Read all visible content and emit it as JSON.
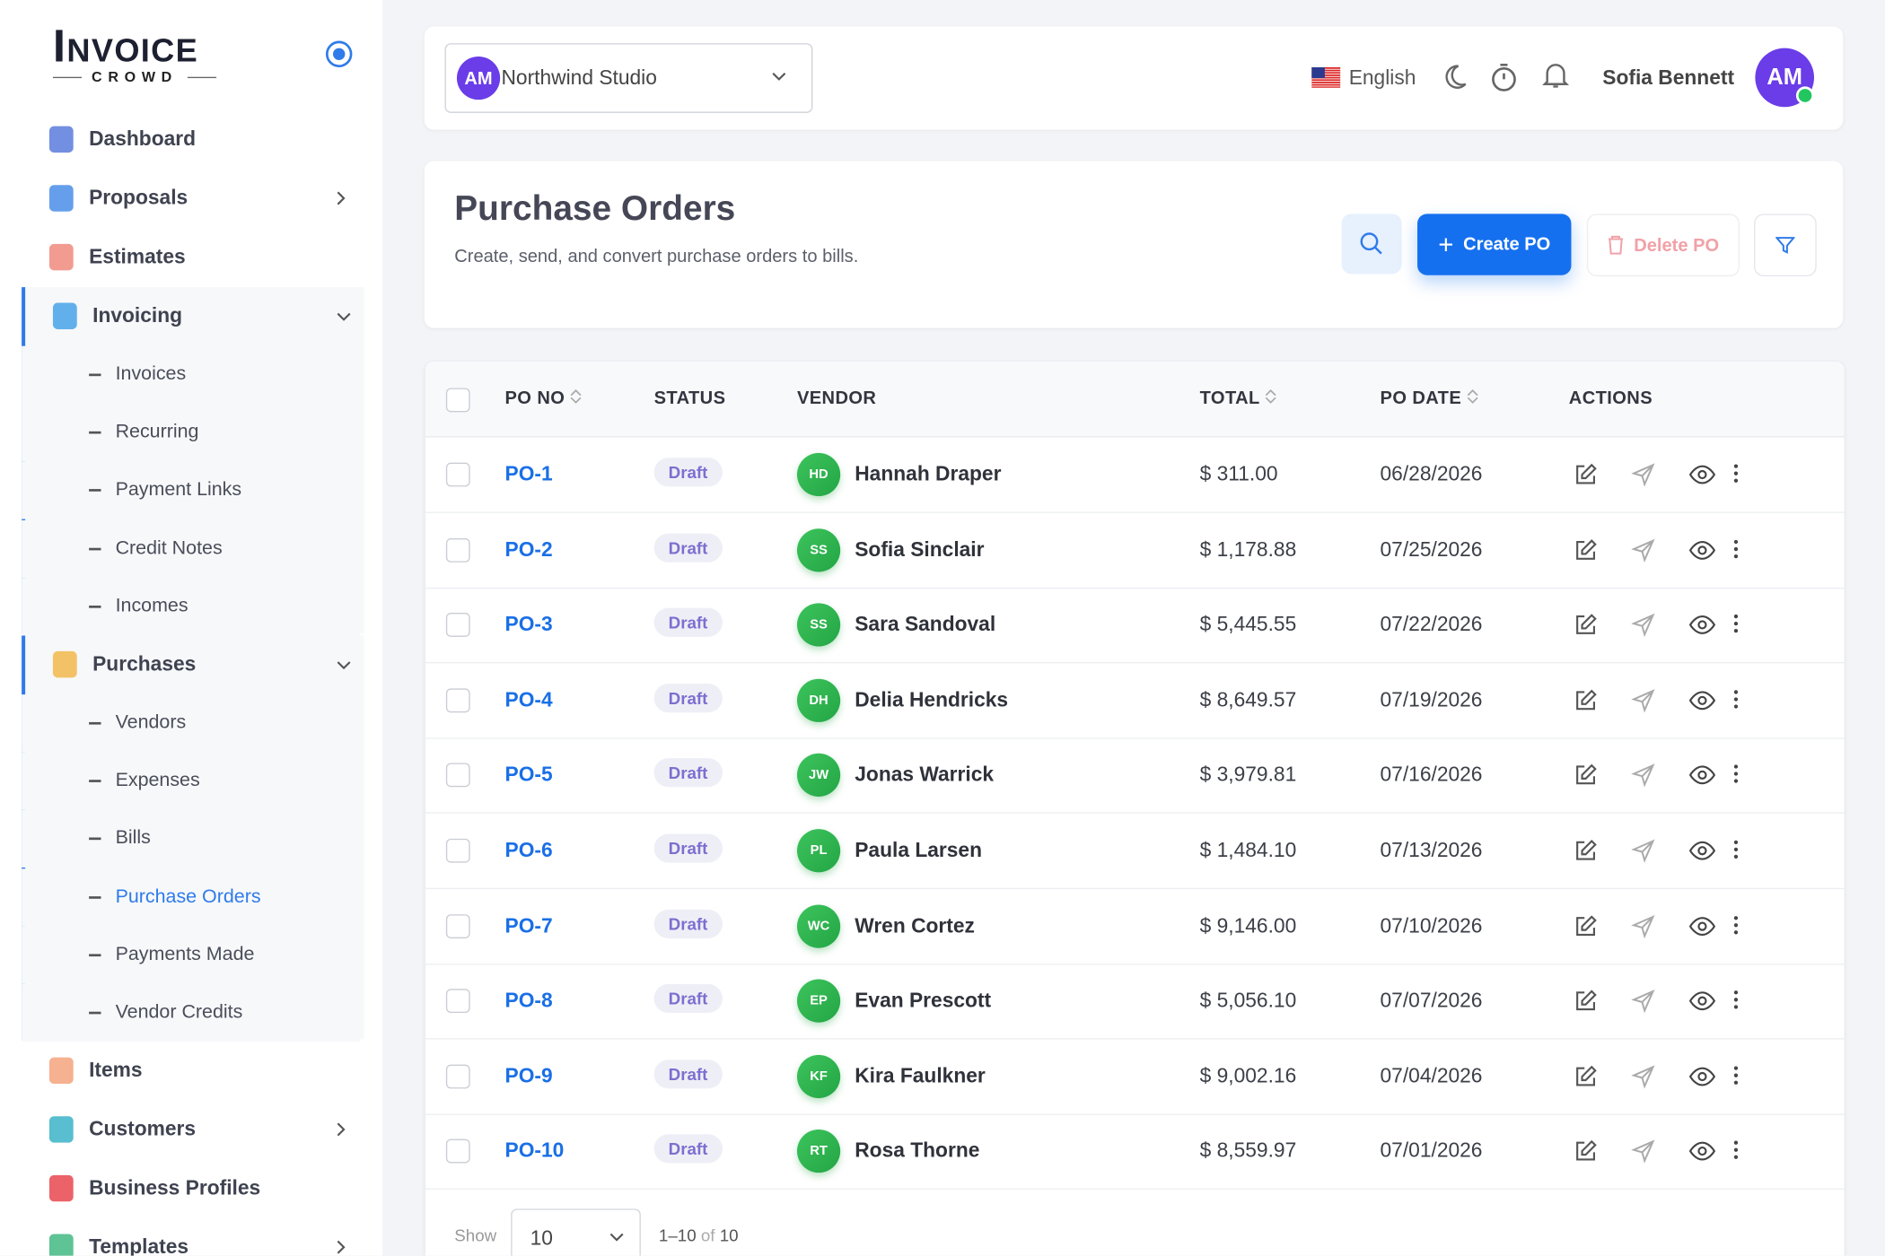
{
  "brand": {
    "name": "Invoice",
    "tagline": "CROWD"
  },
  "sidebar": {
    "items": [
      {
        "label": "Dashboard"
      },
      {
        "label": "Proposals",
        "has_submenu": true
      },
      {
        "label": "Estimates"
      },
      {
        "label": "Invoicing",
        "expanded": true,
        "children": [
          {
            "label": "Invoices"
          },
          {
            "label": "Recurring"
          },
          {
            "label": "Payment Links"
          },
          {
            "label": "Credit Notes"
          },
          {
            "label": "Incomes"
          }
        ]
      },
      {
        "label": "Purchases",
        "expanded": true,
        "children": [
          {
            "label": "Vendors"
          },
          {
            "label": "Expenses"
          },
          {
            "label": "Bills"
          },
          {
            "label": "Purchase Orders",
            "active": true
          },
          {
            "label": "Payments Made"
          },
          {
            "label": "Vendor Credits"
          }
        ]
      },
      {
        "label": "Items"
      },
      {
        "label": "Customers",
        "has_submenu": true
      },
      {
        "label": "Business Profiles"
      },
      {
        "label": "Templates",
        "has_submenu": true
      }
    ]
  },
  "header": {
    "workspace": {
      "initials": "AM",
      "name": "Northwind Studio"
    },
    "language": "English",
    "user": {
      "name": "Sofia Bennett",
      "initials": "AM"
    }
  },
  "page": {
    "title": "Purchase Orders",
    "subtitle": "Create, send, and convert purchase orders to bills.",
    "buttons": {
      "create": "Create PO",
      "delete": "Delete PO"
    }
  },
  "table": {
    "columns": [
      {
        "label": "PO NO",
        "sortable": true
      },
      {
        "label": "STATUS"
      },
      {
        "label": "VENDOR"
      },
      {
        "label": "TOTAL",
        "sortable": true
      },
      {
        "label": "PO DATE",
        "sortable": true
      },
      {
        "label": "ACTIONS"
      }
    ],
    "rows": [
      [
        "PO-1",
        "Draft",
        "HD",
        "Hannah Draper",
        "$ 311.00",
        "06/28/2026"
      ],
      [
        "PO-2",
        "Draft",
        "SS",
        "Sofia Sinclair",
        "$ 1,178.88",
        "07/25/2026"
      ],
      [
        "PO-3",
        "Draft",
        "SS",
        "Sara Sandoval",
        "$ 5,445.55",
        "07/22/2026"
      ],
      [
        "PO-4",
        "Draft",
        "DH",
        "Delia Hendricks",
        "$ 8,649.57",
        "07/19/2026"
      ],
      [
        "PO-5",
        "Draft",
        "JW",
        "Jonas Warrick",
        "$ 3,979.81",
        "07/16/2026"
      ],
      [
        "PO-6",
        "Draft",
        "PL",
        "Paula Larsen",
        "$ 1,484.10",
        "07/13/2026"
      ],
      [
        "PO-7",
        "Draft",
        "WC",
        "Wren Cortez",
        "$ 9,146.00",
        "07/10/2026"
      ],
      [
        "PO-8",
        "Draft",
        "EP",
        "Evan Prescott",
        "$ 5,056.10",
        "07/07/2026"
      ],
      [
        "PO-9",
        "Draft",
        "KF",
        "Kira Faulkner",
        "$ 9,002.16",
        "07/04/2026"
      ],
      [
        "PO-10",
        "Draft",
        "RT",
        "Rosa Thorne",
        "$ 8,559.97",
        "07/01/2026"
      ]
    ]
  },
  "pagination": {
    "show": "Show",
    "page_size": "10",
    "range": "1–10",
    "of": "of",
    "total": "10"
  }
}
